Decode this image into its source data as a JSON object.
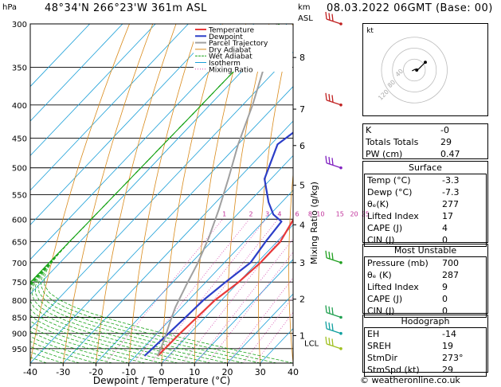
{
  "header": {
    "location": "48°34'N  266°23'W  361m  ASL",
    "datetime": "08.03.2022  06GMT  (Base: 00)"
  },
  "axes": {
    "y_unit": "hPa",
    "km_unit": "km",
    "km_unit2": "ASL",
    "xlabel": "Dewpoint / Temperature (°C)",
    "mixing_label": "Mixing Ratio (g/kg)",
    "lcl_label": "LCL",
    "pressure_ticks": [
      "300",
      "350",
      "400",
      "450",
      "500",
      "550",
      "600",
      "650",
      "700",
      "750",
      "800",
      "850",
      "900",
      "950"
    ],
    "temp_ticks": [
      "-40",
      "-30",
      "-20",
      "-10",
      "0",
      "10",
      "20",
      "30",
      "40"
    ],
    "km_ticks": [
      "8",
      "7",
      "6",
      "5",
      "4",
      "3",
      "2",
      "1"
    ],
    "mixing_ticks": [
      "1",
      "2",
      "3",
      "4",
      "6",
      "8",
      "10",
      "15",
      "20",
      "25"
    ]
  },
  "legend": [
    {
      "label": "Temperature",
      "color": "#e83a3a"
    },
    {
      "label": "Dewpoint",
      "color": "#2c3ec8"
    },
    {
      "label": "Parcel Trajectory",
      "color": "#a0a0a0"
    },
    {
      "label": "Dry Adiabat",
      "color": "#d98a1a"
    },
    {
      "label": "Wet Adiabat",
      "color": "#1aa51a"
    },
    {
      "label": "Isotherm",
      "color": "#1a9fd8"
    },
    {
      "label": "Mixing Ratio",
      "color": "#d84ab0"
    }
  ],
  "chart_data": {
    "type": "line",
    "xlabel": "Dewpoint / Temperature (°C)",
    "ylabel": "hPa",
    "x_range": [
      -40,
      40
    ],
    "y_range": [
      300,
      1000
    ],
    "y_scale": "log-pressure",
    "skew": "45° skew-T",
    "series": [
      {
        "name": "Temperature",
        "points": [
          [
            -5.5,
            300
          ],
          [
            -6.5,
            330
          ],
          [
            -4.5,
            370
          ],
          [
            -3.0,
            400
          ],
          [
            -1.5,
            450
          ],
          [
            -1.5,
            500
          ],
          [
            0.5,
            550
          ],
          [
            1,
            580
          ],
          [
            -1.5,
            600
          ],
          [
            1,
            650
          ],
          [
            1,
            700
          ],
          [
            0,
            750
          ],
          [
            -2,
            800
          ],
          [
            -2.5,
            850
          ],
          [
            -3,
            900
          ],
          [
            -3.3,
            975
          ]
        ]
      },
      {
        "name": "Dewpoint",
        "points": [
          [
            -36,
            300
          ],
          [
            -28,
            335
          ],
          [
            -20,
            385
          ],
          [
            -25,
            420
          ],
          [
            -28,
            460
          ],
          [
            -22,
            520
          ],
          [
            -14,
            565
          ],
          [
            -9,
            590
          ],
          [
            -4.5,
            605
          ],
          [
            -3.5,
            650
          ],
          [
            -2,
            700
          ],
          [
            -4,
            750
          ],
          [
            -5.5,
            800
          ],
          [
            -6,
            850
          ],
          [
            -6.5,
            900
          ],
          [
            -7.3,
            975
          ]
        ]
      },
      {
        "name": "Parcel Trajectory",
        "points": [
          [
            -3.3,
            975
          ],
          [
            -6,
            920
          ],
          [
            -9,
            870
          ],
          [
            -12,
            820
          ],
          [
            -15,
            760
          ],
          [
            -18,
            700
          ],
          [
            -22,
            640
          ],
          [
            -27,
            580
          ],
          [
            -33,
            520
          ],
          [
            -40,
            460
          ],
          [
            -47,
            400
          ],
          [
            -56,
            340
          ],
          [
            -63,
            300
          ]
        ]
      }
    ],
    "wind_barbs_hPa": [
      300,
      400,
      500,
      700,
      850,
      900,
      950
    ]
  },
  "hodograph": {
    "label": "kt",
    "rings": [
      "40",
      "80",
      "120"
    ]
  },
  "indices": {
    "rows": [
      {
        "label": "K",
        "value": "-0"
      },
      {
        "label": "Totals Totals",
        "value": "29"
      },
      {
        "label": "PW (cm)",
        "value": "0.47"
      }
    ]
  },
  "surface": {
    "title": "Surface",
    "rows": [
      {
        "label": "Temp (°C)",
        "value": "-3.3"
      },
      {
        "label": "Dewp (°C)",
        "value": "-7.3"
      },
      {
        "label": "θₑ(K)",
        "value": "277"
      },
      {
        "label": "Lifted Index",
        "value": "17"
      },
      {
        "label": "CAPE (J)",
        "value": "4"
      },
      {
        "label": "CIN (J)",
        "value": "0"
      }
    ]
  },
  "most_unstable": {
    "title": "Most Unstable",
    "rows": [
      {
        "label": "Pressure (mb)",
        "value": "700"
      },
      {
        "label": "θₑ (K)",
        "value": "287"
      },
      {
        "label": "Lifted Index",
        "value": "9"
      },
      {
        "label": "CAPE (J)",
        "value": "0"
      },
      {
        "label": "CIN (J)",
        "value": "0"
      }
    ]
  },
  "hodograph_table": {
    "title": "Hodograph",
    "rows": [
      {
        "label": "EH",
        "value": "-14"
      },
      {
        "label": "SREH",
        "value": "19"
      },
      {
        "label": "StmDir",
        "value": "273°"
      },
      {
        "label": "StmSpd (kt)",
        "value": "29"
      }
    ]
  },
  "footer": "© weatheronline.co.uk"
}
